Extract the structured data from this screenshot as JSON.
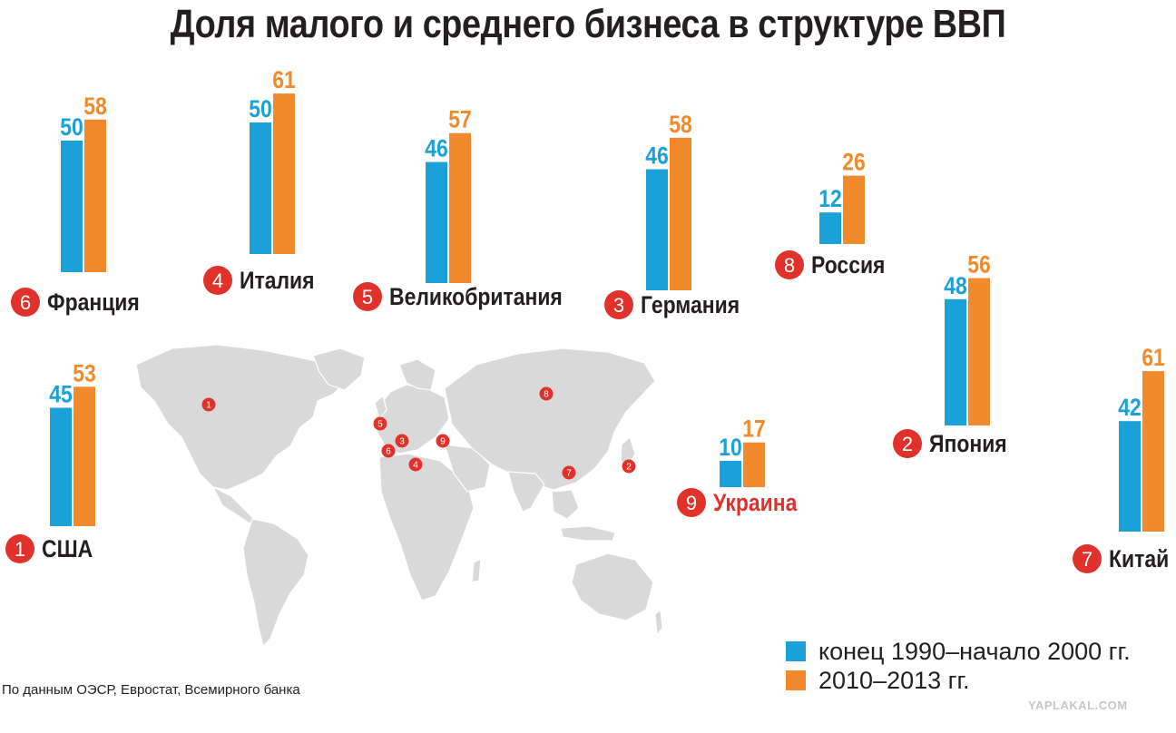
{
  "title": "Доля малого и среднего бизнеса в структуре ВВП",
  "legend": {
    "series1": "конец 1990–начало 2000 гг.",
    "series2": "2010–2013 гг."
  },
  "source": "По данным ОЭСР, Евростат, Всемирного банка",
  "watermark": "YAPLAKAL.COM",
  "colors": {
    "series1": "#1ba1d8",
    "series2": "#f08a2c",
    "rank_badge": "#e1312b",
    "map_land": "#d9d9da",
    "map_border": "#ffffff"
  },
  "chart_data": {
    "type": "bar",
    "title": "Доля малого и среднего бизнеса в структуре ВВП",
    "series": [
      {
        "name": "конец 1990–начало 2000 гг.",
        "color": "#1ba1d8"
      },
      {
        "name": "2010–2013 гг.",
        "color": "#f08a2c"
      }
    ],
    "countries": [
      {
        "name": "Франция",
        "rank": "6",
        "values": [
          50,
          58
        ]
      },
      {
        "name": "Италия",
        "rank": "4",
        "values": [
          50,
          61
        ]
      },
      {
        "name": "Великобритания",
        "rank": "5",
        "values": [
          46,
          57
        ]
      },
      {
        "name": "Германия",
        "rank": "3",
        "values": [
          46,
          58
        ]
      },
      {
        "name": "Россия",
        "rank": "8",
        "values": [
          12,
          26
        ]
      },
      {
        "name": "США",
        "rank": "1",
        "values": [
          45,
          53
        ]
      },
      {
        "name": "Япония",
        "rank": "2",
        "values": [
          48,
          56
        ]
      },
      {
        "name": "Украина",
        "rank": "9",
        "values": [
          10,
          17
        ],
        "highlight": true
      },
      {
        "name": "Китай",
        "rank": "7",
        "values": [
          42,
          61
        ]
      }
    ],
    "map_markers": [
      "1",
      "2",
      "3",
      "4",
      "5",
      "6",
      "7",
      "8",
      "9"
    ]
  }
}
